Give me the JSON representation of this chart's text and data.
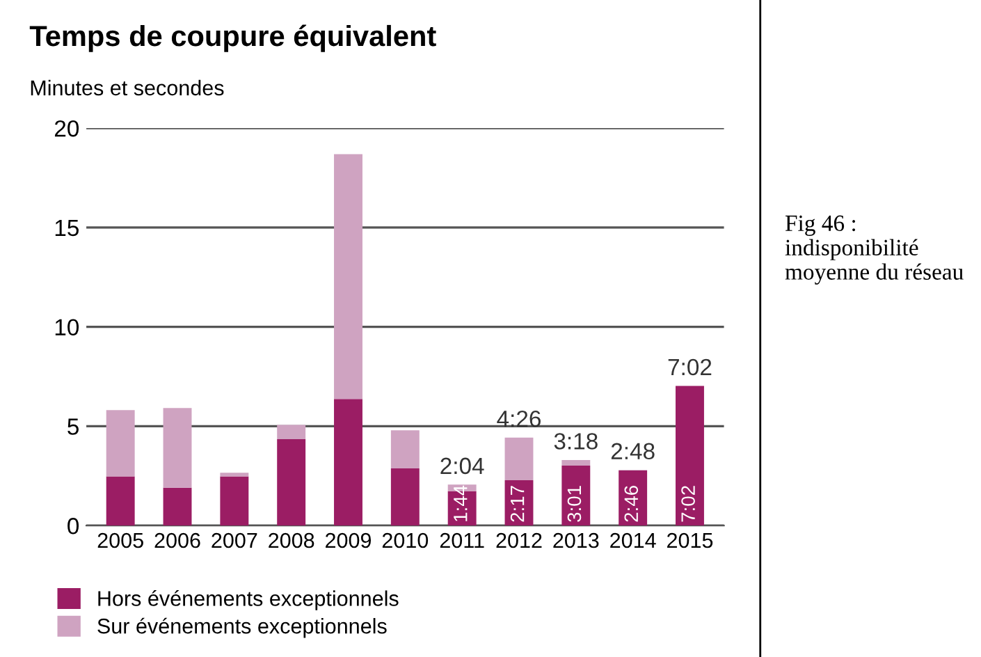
{
  "chart_data": {
    "type": "bar",
    "title": "Temps de coupure équivalent",
    "ylabel": "Minutes et secondes",
    "categories": [
      "2005",
      "2006",
      "2007",
      "2008",
      "2009",
      "2010",
      "2011",
      "2012",
      "2013",
      "2014",
      "2015"
    ],
    "stacked": true,
    "series": [
      {
        "name": "Hors événements exceptionnels",
        "color": "#9b1d64",
        "values": [
          2.48,
          1.91,
          2.48,
          4.35,
          6.37,
          2.88,
          1.73,
          2.28,
          3.02,
          2.77,
          7.03
        ],
        "value_labels": [
          null,
          null,
          null,
          null,
          null,
          null,
          "1:44",
          "2:17",
          "3:01",
          "2:46",
          "7:02"
        ]
      },
      {
        "name": "Sur événements exceptionnels",
        "color": "#cfa3c1",
        "values": [
          3.33,
          4.01,
          0.18,
          0.72,
          12.32,
          1.92,
          0.33,
          2.15,
          0.28,
          0.03,
          0
        ]
      }
    ],
    "totals": [
      null,
      null,
      null,
      null,
      null,
      null,
      "2:04",
      "4:26",
      "3:18",
      "2:48",
      "7:02"
    ],
    "ylim": [
      0,
      20
    ],
    "yticks": [
      0,
      5,
      10,
      15,
      20
    ],
    "grid": "y",
    "legend": "bottom left",
    "annotations": [
      "Fig 46 : indisponibilité moyenne du réseau"
    ]
  }
}
